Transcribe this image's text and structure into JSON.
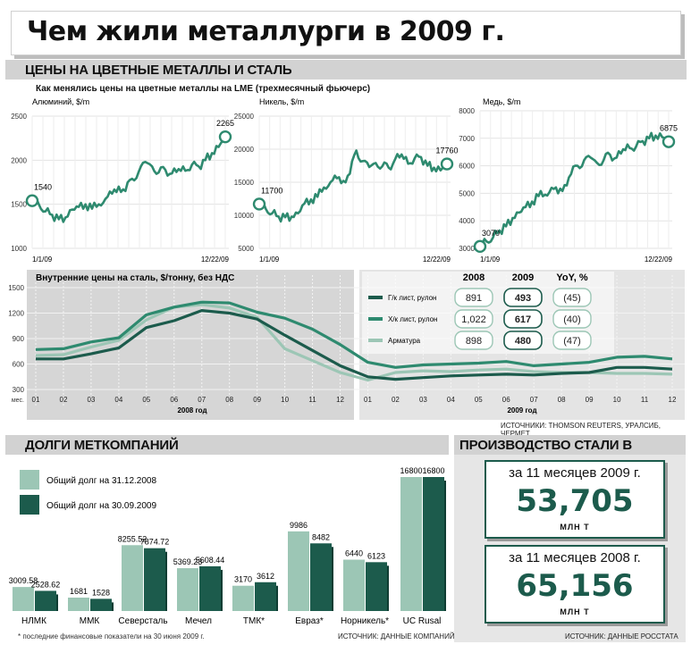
{
  "page": {
    "title": "Чем жили металлурги в 2009 г.",
    "section_prices": "ЦЕНЫ НА ЦВЕТНЫЕ МЕТАЛЛЫ И СТАЛЬ",
    "lme_title": "Как менялись цены на цветные металлы на LME (трехмесячный фьючерс)",
    "sources_prices": "ИСТОЧНИКИ: THOMSON REUTERS, УРАЛСИБ, ЧЕРМЕТ",
    "section_debts": "ДОЛГИ МЕТКОМПАНИЙ",
    "debts_note": "* последние финансовые показатели на 30 июня 2009 г.",
    "debts_source": "ИСТОЧНИК: ДАННЫЕ КОМПАНИЙ",
    "section_production": "ПРОИЗВОДСТВО СТАЛИ В РОССИИ",
    "production_source": "ИСТОЧНИК: ДАННЫЕ РОССТАТА"
  },
  "colors": {
    "dark": "#1c5b4c",
    "mid": "#2e8a6f",
    "light": "#9cc6b5",
    "band": "#d2d2d2"
  },
  "production": [
    {
      "label": "за 11 месяцев 2009 г.",
      "value": "53,705",
      "unit": "МЛН Т"
    },
    {
      "label": "за 11 месяцев 2008 г.",
      "value": "65,156",
      "unit": "МЛН Т"
    }
  ],
  "chart_data": [
    {
      "type": "line",
      "title": "Алюминий, $/m",
      "x_labels": [
        "1/1/09",
        "12/22/09"
      ],
      "ylim": [
        1000,
        2500
      ],
      "yticks": [
        1000,
        1500,
        2000,
        2500
      ],
      "series": [
        {
          "name": "Алюминий",
          "values": [
            1540,
            1500,
            1420,
            1380,
            1330,
            1350,
            1440,
            1470,
            1500,
            1450,
            1500,
            1560,
            1620,
            1700,
            1650,
            1790,
            1870,
            1980,
            1930,
            1860,
            1890,
            1850,
            1900,
            1880,
            1950,
            1930,
            2000,
            2080,
            2150,
            2265
          ]
        }
      ],
      "annotations": {
        "start": "1540",
        "end": "2265"
      }
    },
    {
      "type": "line",
      "title": "Никель, $/m",
      "x_labels": [
        "1/1/09",
        "12/22/09"
      ],
      "ylim": [
        5000,
        25000
      ],
      "yticks": [
        5000,
        10000,
        15000,
        20000,
        25000
      ],
      "series": [
        {
          "name": "Никель",
          "values": [
            11700,
            11000,
            10300,
            9800,
            9700,
            9800,
            10300,
            11800,
            12400,
            12800,
            14200,
            15000,
            15600,
            15200,
            16300,
            19800,
            18200,
            17300,
            17900,
            17400,
            17200,
            18500,
            19200,
            17800,
            18600,
            18800,
            17500,
            17200,
            16800,
            17760
          ]
        }
      ],
      "annotations": {
        "start": "11700",
        "end": "17760"
      }
    },
    {
      "type": "line",
      "title": "Медь, $/m",
      "x_labels": [
        "1/1/09",
        "12/22/09"
      ],
      "ylim": [
        3000,
        8000
      ],
      "yticks": [
        3000,
        4000,
        5000,
        6000,
        7000,
        8000
      ],
      "series": [
        {
          "name": "Медь",
          "values": [
            3070,
            3250,
            3400,
            3650,
            3800,
            4100,
            4300,
            4500,
            4700,
            4900,
            4950,
            5200,
            5000,
            5300,
            5700,
            6000,
            6200,
            6300,
            6100,
            6200,
            6400,
            6300,
            6600,
            6650,
            6700,
            6900,
            7000,
            7100,
            7050,
            6875
          ]
        }
      ],
      "annotations": {
        "start": "3070",
        "end": "6875"
      }
    },
    {
      "type": "line",
      "title": "Внутренние цены на сталь, $/тонну, без НДС",
      "categories": [
        "01",
        "02",
        "03",
        "04",
        "05",
        "06",
        "07",
        "08",
        "09",
        "10",
        "11",
        "12",
        "01",
        "02",
        "03",
        "04",
        "05",
        "06",
        "07",
        "08",
        "09",
        "10",
        "11",
        "12"
      ],
      "year_labels": [
        "2008 год",
        "2009 год"
      ],
      "ylabel_note": "мес.",
      "ylim": [
        300,
        1500
      ],
      "yticks": [
        300,
        600,
        900,
        1200,
        1500
      ],
      "series": [
        {
          "name": "Г/к лист, рулон",
          "color": "#1c5b4c",
          "values": [
            660,
            660,
            720,
            790,
            1030,
            1110,
            1230,
            1200,
            1130,
            940,
            760,
            580,
            450,
            420,
            440,
            460,
            470,
            480,
            470,
            490,
            500,
            560,
            560,
            540
          ]
        },
        {
          "name": "Х/к лист, рулон",
          "color": "#2e8a6f",
          "values": [
            770,
            780,
            860,
            910,
            1180,
            1270,
            1330,
            1320,
            1210,
            1140,
            1010,
            830,
            620,
            560,
            590,
            600,
            610,
            630,
            580,
            600,
            620,
            680,
            690,
            660
          ]
        },
        {
          "name": "Арматура",
          "color": "#9cc6b5",
          "values": [
            700,
            710,
            800,
            880,
            1120,
            1270,
            1300,
            1260,
            1150,
            780,
            640,
            500,
            410,
            500,
            520,
            510,
            530,
            540,
            510,
            500,
            500,
            490,
            490,
            480
          ]
        }
      ],
      "table": {
        "headers": [
          "2008",
          "2009",
          "YoY, %"
        ],
        "rows": [
          {
            "name": "Г/к лист, рулон",
            "v2008": "891",
            "v2009": "493",
            "yoy": "(45)"
          },
          {
            "name": "Х/к лист, рулон",
            "v2008": "1,022",
            "v2009": "617",
            "yoy": "(40)"
          },
          {
            "name": "Арматура",
            "v2008": "898",
            "v2009": "480",
            "yoy": "(47)"
          }
        ]
      }
    },
    {
      "type": "bar",
      "title": "ДОЛГИ МЕТКОМПАНИЙ",
      "categories": [
        "НЛМК",
        "ММК",
        "Северсталь",
        "Мечел",
        "ТМК*",
        "Евраз*",
        "Норникель*",
        "UC Rusal"
      ],
      "series": [
        {
          "name": "Общий долг на 31.12.2008",
          "color": "#9cc6b5",
          "values": [
            3009.58,
            1681,
            8255.52,
            5369.23,
            3170,
            9986,
            6440,
            16800
          ],
          "labels": [
            "3009.58",
            "1681",
            "8255.52",
            "5369.23",
            "3170",
            "9986",
            "6440",
            "16800"
          ]
        },
        {
          "name": "Общий долг на 30.09.2009",
          "color": "#1c5b4c",
          "values": [
            2528.62,
            1528,
            7874.72,
            5608.44,
            3612,
            8482,
            6123,
            16800
          ],
          "labels": [
            "2528.62",
            "1528",
            "7874.72",
            "5608.44",
            "3612",
            "8482",
            "6123",
            "16800"
          ]
        }
      ],
      "ylim": [
        0,
        16800
      ]
    }
  ]
}
